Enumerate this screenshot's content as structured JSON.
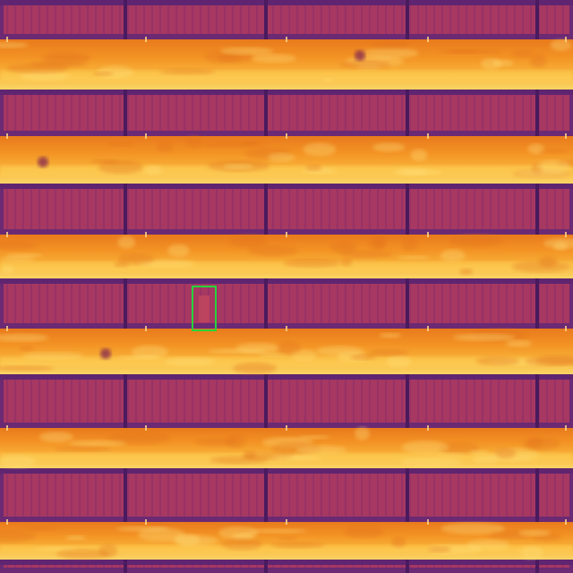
{
  "image": {
    "kind": "thermal-infrared-aerial",
    "subject": "solar-panel-array",
    "panel_row_count": 6,
    "ground_strip_count": 6,
    "detections": [
      {
        "label": "",
        "class": "hotspot-anomaly"
      }
    ],
    "colors": {
      "panel_base": "#a73862",
      "panel_frame": "#6b2a73",
      "panel_cell_line": "#8c2d6a",
      "ground_base": "#f08a1c",
      "ground_hot": "#ffd35a",
      "ground_warm": "#f6a02a",
      "detection_box": "#27d43a"
    }
  }
}
